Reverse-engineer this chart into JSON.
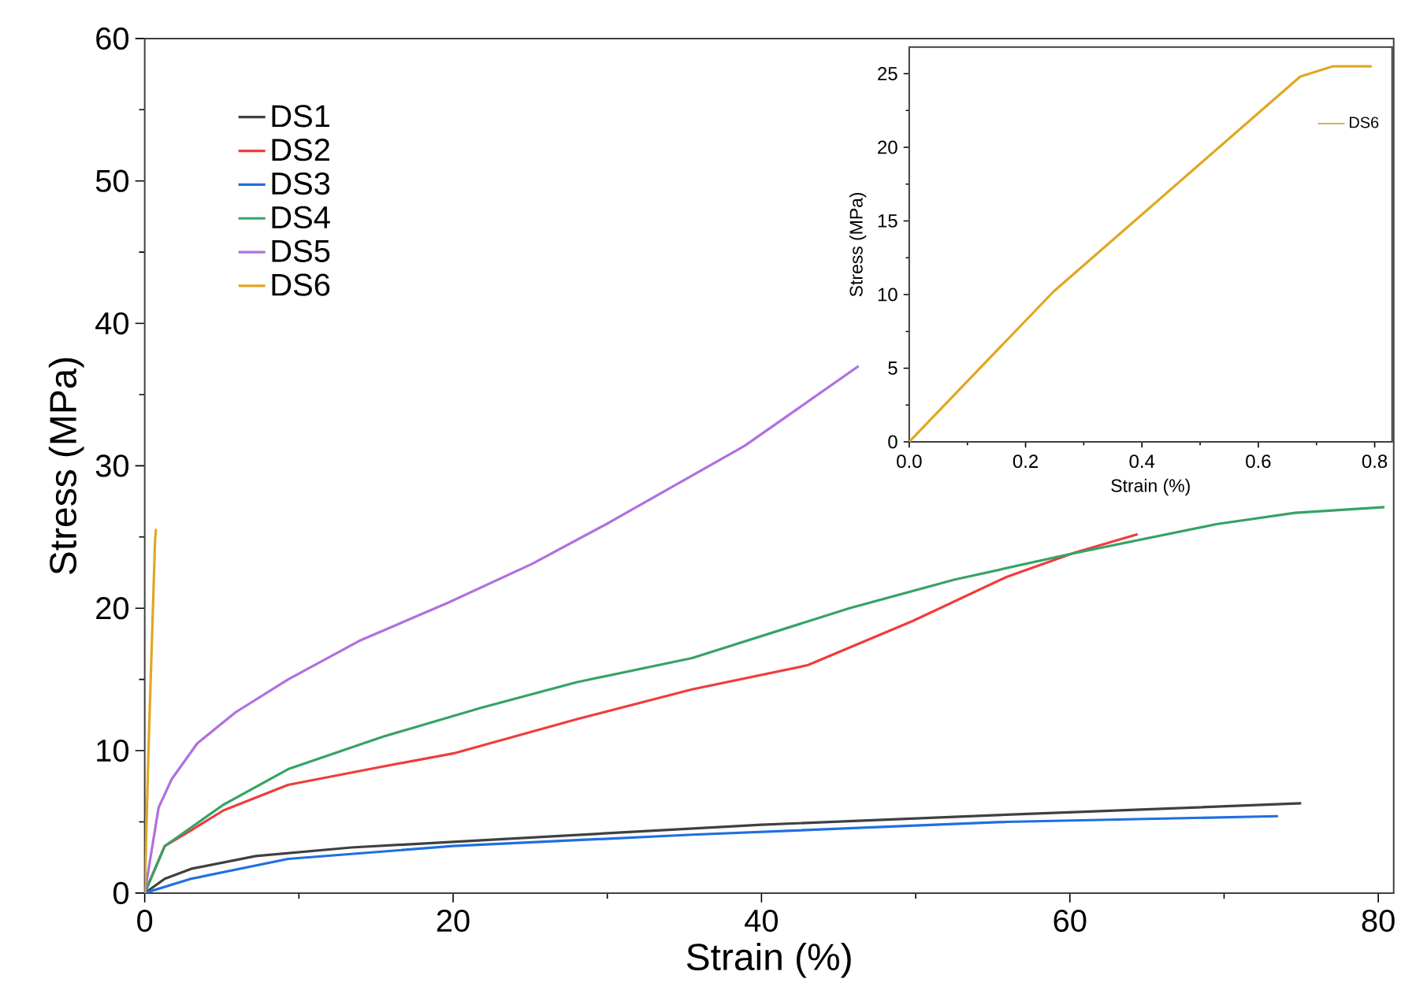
{
  "chart_data": [
    {
      "type": "line",
      "xlabel": "Strain (%)",
      "ylabel": "Stress (MPa)",
      "xlim": [
        0,
        81
      ],
      "ylim": [
        0,
        60
      ],
      "xticks": [
        0,
        20,
        40,
        60,
        80
      ],
      "yticks": [
        0,
        10,
        20,
        30,
        40,
        50,
        60
      ],
      "legend": "top left",
      "series": [
        {
          "name": "DS1",
          "color": "#404040",
          "x": [
            0,
            1.3,
            3,
            7.2,
            13.4,
            20,
            30,
            40,
            55.9,
            75
          ],
          "values": [
            0,
            1.0,
            1.7,
            2.6,
            3.2,
            3.6,
            4.2,
            4.8,
            5.5,
            6.3
          ]
        },
        {
          "name": "DS2",
          "color": "#f03c3c",
          "x": [
            0,
            1.3,
            3,
            5.1,
            9.3,
            15.5,
            20,
            28,
            35.5,
            43,
            49.8,
            55.9,
            60.3,
            64.4
          ],
          "values": [
            0,
            3.3,
            4.4,
            5.8,
            7.6,
            8.9,
            9.8,
            12.2,
            14.3,
            16.0,
            19.1,
            22.2,
            23.9,
            25.2
          ]
        },
        {
          "name": "DS3",
          "color": "#1f6fe0",
          "x": [
            0,
            3,
            9.3,
            20,
            35.5,
            55.9,
            73.5
          ],
          "values": [
            0,
            1.0,
            2.4,
            3.3,
            4.1,
            5.0,
            5.4
          ]
        },
        {
          "name": "DS4",
          "color": "#35a365",
          "x": [
            0,
            1.3,
            3,
            5.1,
            9.3,
            15.5,
            21.8,
            28,
            35.5,
            45.7,
            52.5,
            60,
            69.5,
            74.6,
            80.4
          ],
          "values": [
            0,
            3.3,
            4.6,
            6.2,
            8.7,
            11.0,
            13.0,
            14.8,
            16.5,
            20.0,
            22.0,
            23.8,
            25.9,
            26.7,
            27.1
          ]
        },
        {
          "name": "DS5",
          "color": "#b070e0",
          "x": [
            0,
            0.9,
            1.75,
            3.4,
            5.9,
            9.3,
            13.9,
            19.7,
            25.1,
            30.1,
            38.9,
            46.3
          ],
          "values": [
            0,
            6.0,
            8.0,
            10.5,
            12.7,
            15.0,
            17.7,
            20.4,
            23.1,
            26.0,
            31.4,
            37.0
          ]
        },
        {
          "name": "DS6",
          "color": "#e0a820",
          "x": [
            0,
            0.248,
            0.672,
            0.728,
            0.795
          ],
          "values": [
            0,
            10.2,
            24.8,
            25.5,
            25.5
          ]
        }
      ]
    },
    {
      "type": "line",
      "xlabel": "Strain (%)",
      "ylabel": "Stress (MPa)",
      "xlim": [
        0,
        0.83
      ],
      "ylim": [
        0,
        26.8
      ],
      "xticks": [
        {
          "value": 0,
          "label": "0.0"
        },
        0.2,
        0.4,
        0.6,
        0.8
      ],
      "yticks": [
        0,
        5,
        10,
        15,
        20,
        25
      ],
      "legend": "top right",
      "series": [
        {
          "name": "DS6",
          "color": "#e0a820",
          "x": [
            0,
            0.248,
            0.672,
            0.728,
            0.795
          ],
          "values": [
            0,
            10.2,
            24.8,
            25.5,
            25.5
          ]
        }
      ]
    }
  ]
}
